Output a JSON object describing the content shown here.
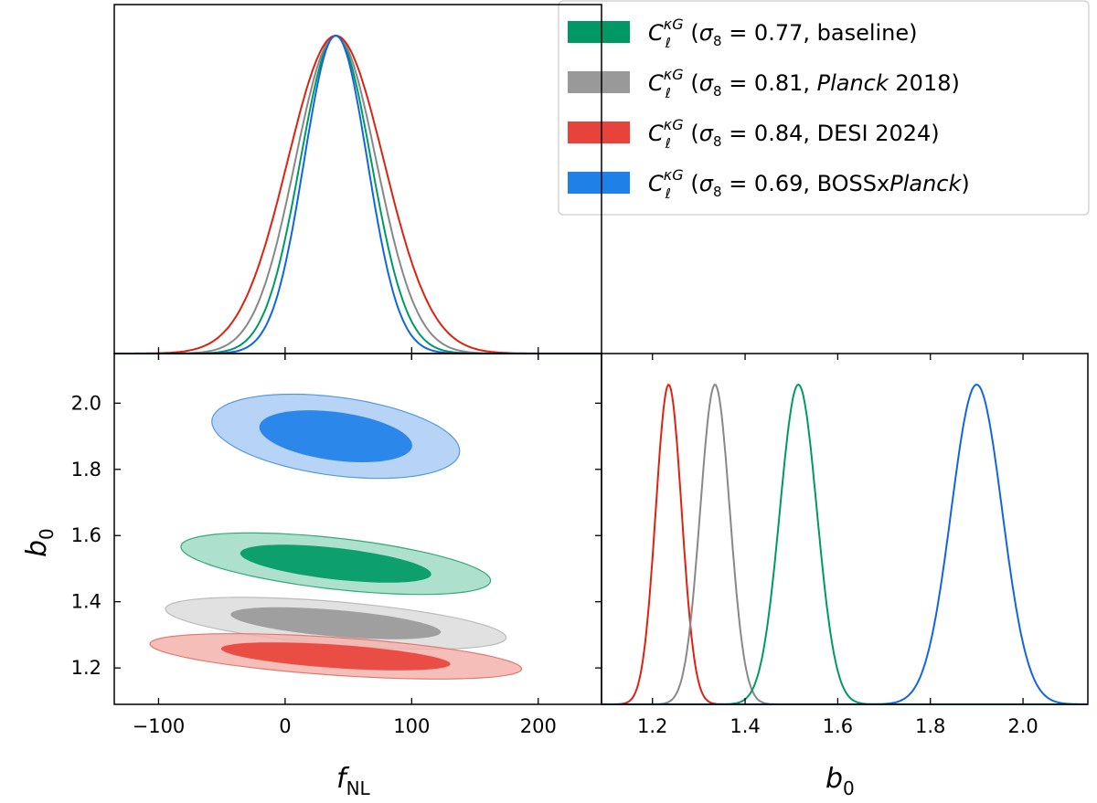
{
  "chart_data": [
    {
      "type": "line",
      "panel": "fNL marginal posterior (1D)",
      "xlim": [
        -135,
        250
      ],
      "x_ticks": [
        -100,
        0,
        100,
        200
      ],
      "y_ticks_labeled": false,
      "series": [
        {
          "id": "baseline",
          "mean": 40,
          "sigma": 28,
          "color": "#009966"
        },
        {
          "id": "planck",
          "mean": 40,
          "sigma": 32,
          "color": "#888888"
        },
        {
          "id": "desi",
          "mean": 40,
          "sigma": 38,
          "color": "#dd2211"
        },
        {
          "id": "boss",
          "mean": 40,
          "sigma": 25,
          "color": "#1166dd"
        }
      ]
    },
    {
      "type": "line",
      "panel": "b0 marginal posterior (1D)",
      "xlim": [
        1.09,
        2.14
      ],
      "x_ticks": [
        "1.2",
        "1.4",
        "1.6",
        "1.8",
        "2.0"
      ],
      "xlabel": "b",
      "xlabel_sub": "0",
      "series": [
        {
          "id": "desi",
          "mean": 1.235,
          "sigma": 0.028,
          "color": "#dd2211"
        },
        {
          "id": "planck",
          "mean": 1.335,
          "sigma": 0.032,
          "color": "#888888"
        },
        {
          "id": "baseline",
          "mean": 1.515,
          "sigma": 0.04,
          "color": "#009966"
        },
        {
          "id": "boss",
          "mean": 1.9,
          "sigma": 0.055,
          "color": "#1166dd"
        }
      ]
    },
    {
      "type": "contour",
      "panel": "fNL vs b0 joint posterior (2D)",
      "xlim": [
        -135,
        250
      ],
      "ylim": [
        1.09,
        2.15
      ],
      "x_ticks": [
        "−100",
        "0",
        "100",
        "200"
      ],
      "y_ticks": [
        "1.2",
        "1.4",
        "1.6",
        "1.8",
        "2.0"
      ],
      "xlabel": "f",
      "xlabel_sub": "NL",
      "ylabel": "b",
      "ylabel_sub": "0",
      "levels": [
        "68%",
        "95%"
      ],
      "series": [
        {
          "id": "boss",
          "center": [
            40,
            1.9
          ],
          "sx": 40,
          "sy": 0.052,
          "rho": -0.35,
          "fill_outer": "#aaccf6",
          "fill_inner": "#1f80e8",
          "edge": "#5599e0"
        },
        {
          "id": "baseline",
          "center": [
            40,
            1.515
          ],
          "sx": 50,
          "sy": 0.038,
          "rho": -0.55,
          "fill_outer": "#9fdac4",
          "fill_inner": "#009966",
          "edge": "#33aa77"
        },
        {
          "id": "planck",
          "center": [
            40,
            1.335
          ],
          "sx": 55,
          "sy": 0.032,
          "rho": -0.55,
          "fill_outer": "#dcdcdc",
          "fill_inner": "#999999",
          "edge": "#bbbbbb"
        },
        {
          "id": "desi",
          "center": [
            40,
            1.235
          ],
          "sx": 60,
          "sy": 0.028,
          "rho": -0.55,
          "fill_outer": "#f4b3ad",
          "fill_inner": "#e8433a",
          "edge": "#e07a72"
        }
      ]
    }
  ],
  "legend": {
    "placement": "top-right",
    "entries": [
      {
        "id": "baseline",
        "symbol": "C",
        "sub": "ℓ",
        "sup": "κG",
        "open": " (",
        "sigma": "σ",
        "sigma_sub": "8",
        "text": " = 0.77, baseline)",
        "italic": "",
        "tail": "",
        "color": "#009966"
      },
      {
        "id": "planck",
        "symbol": "C",
        "sub": "ℓ",
        "sup": "κG",
        "open": " (",
        "sigma": "σ",
        "sigma_sub": "8",
        "text": " = 0.81, ",
        "italic": "Planck",
        "tail": " 2018)",
        "color": "#999999"
      },
      {
        "id": "desi",
        "symbol": "C",
        "sub": "ℓ",
        "sup": "κG",
        "open": " (",
        "sigma": "σ",
        "sigma_sub": "8",
        "text": " = 0.84, DESI 2024)",
        "italic": "",
        "tail": "",
        "color": "#e8433a"
      },
      {
        "id": "boss",
        "symbol": "C",
        "sub": "ℓ",
        "sup": "κG",
        "open": " (",
        "sigma": "σ",
        "sigma_sub": "8",
        "text": " = 0.69, BOSSx",
        "italic": "Planck",
        "tail": ")",
        "color": "#1f80e8"
      }
    ]
  }
}
